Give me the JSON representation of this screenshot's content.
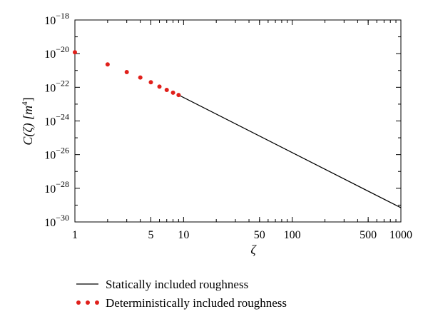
{
  "chart_data": {
    "type": "line",
    "xscale": "log",
    "yscale": "log",
    "xlim": [
      1,
      1000
    ],
    "ylim": [
      1e-30,
      1e-18
    ],
    "xlabel": "ζ",
    "ylabel": "C(ζ) [m⁴]",
    "ylabel_parts": {
      "main": "C(ζ) [m",
      "sup": "4",
      "close": "]"
    },
    "x_ticks": [
      {
        "value": 1,
        "label": "1"
      },
      {
        "value": 5,
        "label": "5"
      },
      {
        "value": 10,
        "label": "10"
      },
      {
        "value": 50,
        "label": "50"
      },
      {
        "value": 100,
        "label": "100"
      },
      {
        "value": 500,
        "label": "500"
      },
      {
        "value": 1000,
        "label": "1000"
      }
    ],
    "y_ticks": [
      {
        "value": 1e-30,
        "base": "10",
        "exp": "−30"
      },
      {
        "value": 1e-28,
        "base": "10",
        "exp": "−28"
      },
      {
        "value": 1e-26,
        "base": "10",
        "exp": "−26"
      },
      {
        "value": 1e-24,
        "base": "10",
        "exp": "−24"
      },
      {
        "value": 1e-22,
        "base": "10",
        "exp": "−22"
      },
      {
        "value": 1e-20,
        "base": "10",
        "exp": "−20"
      },
      {
        "value": 1e-18,
        "base": "10",
        "exp": "−18"
      }
    ],
    "series": [
      {
        "name": "Statically included roughness",
        "style": "line",
        "color": "#000000",
        "x": [
          9,
          1000
        ],
        "y": [
          3.5e-23,
          7e-30
        ]
      },
      {
        "name": "Deterministically included roughness",
        "style": "dots",
        "color": "#e0201b",
        "x": [
          1,
          2,
          3,
          4,
          5,
          6,
          7,
          8,
          9
        ],
        "y": [
          1.2e-20,
          2.3e-21,
          8e-22,
          3.8e-22,
          2e-22,
          1.1e-22,
          7e-23,
          4.8e-23,
          3.5e-23
        ]
      }
    ],
    "grid": false,
    "legend_position": "bottom"
  }
}
